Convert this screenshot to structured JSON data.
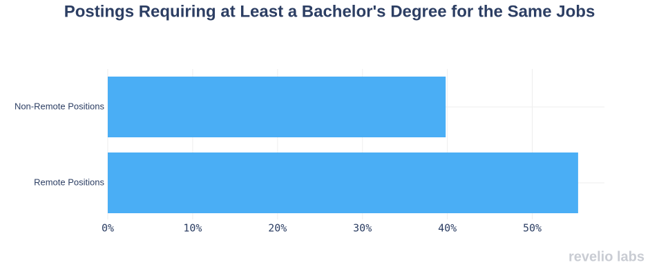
{
  "chart_data": {
    "type": "hbar",
    "title": "Postings Requiring at Least a Bachelor's Degree for the Same Jobs",
    "categories": [
      "Non-Remote Positions",
      "Remote Positions"
    ],
    "values": [
      39.8,
      55.4
    ],
    "color": "#4aaef5",
    "xlim": [
      0,
      58.5
    ],
    "xticks": [
      {
        "value": 0,
        "label": "0%"
      },
      {
        "value": 10,
        "label": "10%"
      },
      {
        "value": 20,
        "label": "20%"
      },
      {
        "value": 30,
        "label": "30%"
      },
      {
        "value": 40,
        "label": "40%"
      },
      {
        "value": 50,
        "label": "50%"
      }
    ],
    "grid": true,
    "watermark": "revelio labs"
  }
}
